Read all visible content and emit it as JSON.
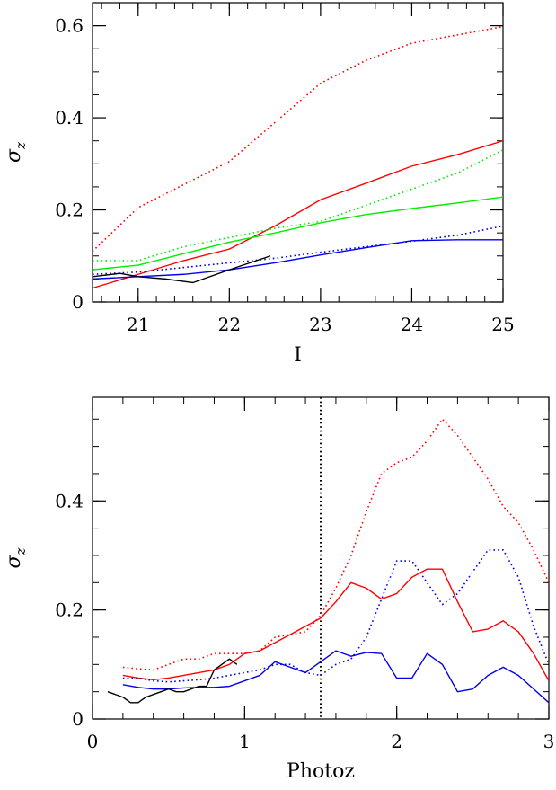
{
  "colors": {
    "red": "#ff0000",
    "green": "#00ee00",
    "blue": "#0000ee",
    "black": "#000000"
  },
  "chart_data": [
    {
      "type": "line",
      "xlabel": "I",
      "ylabel": "σ",
      "ylabel_sub": "z",
      "xlim": [
        20.5,
        25
      ],
      "ylim": [
        0,
        0.65
      ],
      "xticks": [
        21,
        22,
        23,
        24,
        25
      ],
      "xtick_labels": [
        "21",
        "22",
        "23",
        "24",
        "25"
      ],
      "yticks": [
        0,
        0.2,
        0.4,
        0.6
      ],
      "ytick_labels": [
        "0",
        "0.2",
        "0.4",
        "0.6"
      ],
      "x_minor_step": 0.2,
      "y_minor_step": 0.05,
      "vlines": [],
      "series": [
        {
          "color": "red",
          "style": "dotted",
          "x": [
            20.5,
            21.0,
            21.5,
            22.0,
            22.5,
            23.0,
            23.5,
            24.0,
            24.5,
            25.0
          ],
          "y": [
            0.11,
            0.205,
            0.255,
            0.305,
            0.39,
            0.475,
            0.525,
            0.562,
            0.58,
            0.598
          ]
        },
        {
          "color": "red",
          "style": "solid",
          "x": [
            20.5,
            21.0,
            21.5,
            22.0,
            22.5,
            23.0,
            23.5,
            24.0,
            24.5,
            25.0
          ],
          "y": [
            0.03,
            0.06,
            0.09,
            0.115,
            0.165,
            0.222,
            0.258,
            0.295,
            0.32,
            0.35
          ]
        },
        {
          "color": "green",
          "style": "dotted",
          "x": [
            20.5,
            21.0,
            21.5,
            22.0,
            22.5,
            23.0,
            23.5,
            24.0,
            24.5,
            25.0
          ],
          "y": [
            0.09,
            0.09,
            0.12,
            0.14,
            0.16,
            0.175,
            0.21,
            0.245,
            0.28,
            0.33
          ]
        },
        {
          "color": "green",
          "style": "solid",
          "x": [
            20.5,
            21.0,
            21.5,
            22.0,
            22.5,
            23.0,
            23.5,
            24.0,
            24.5,
            25.0
          ],
          "y": [
            0.07,
            0.08,
            0.105,
            0.13,
            0.15,
            0.172,
            0.19,
            0.203,
            0.215,
            0.228
          ]
        },
        {
          "color": "blue",
          "style": "dotted",
          "x": [
            20.5,
            21.0,
            21.5,
            22.0,
            22.5,
            23.0,
            23.5,
            24.0,
            24.5,
            25.0
          ],
          "y": [
            0.06,
            0.065,
            0.075,
            0.085,
            0.095,
            0.108,
            0.12,
            0.132,
            0.145,
            0.165
          ]
        },
        {
          "color": "blue",
          "style": "solid",
          "x": [
            20.5,
            21.0,
            21.5,
            22.0,
            22.5,
            23.0,
            23.5,
            24.0,
            24.5,
            25.0
          ],
          "y": [
            0.05,
            0.055,
            0.06,
            0.07,
            0.085,
            0.102,
            0.118,
            0.133,
            0.135,
            0.135
          ]
        },
        {
          "color": "black",
          "style": "solid",
          "x": [
            20.5,
            20.8,
            21.0,
            21.3,
            21.6,
            22.0,
            22.45
          ],
          "y": [
            0.055,
            0.062,
            0.055,
            0.05,
            0.042,
            0.07,
            0.1
          ]
        }
      ]
    },
    {
      "type": "line",
      "xlabel": "Photoz",
      "ylabel": "σ",
      "ylabel_sub": "z",
      "xlim": [
        0,
        3
      ],
      "ylim": [
        0,
        0.59
      ],
      "xticks": [
        0,
        1,
        2,
        3
      ],
      "xtick_labels": [
        "0",
        "1",
        "2",
        "3"
      ],
      "yticks": [
        0,
        0.2,
        0.4
      ],
      "ytick_labels": [
        "0",
        "0.2",
        "0.4"
      ],
      "x_minor_step": 0.2,
      "y_minor_step": 0.05,
      "vlines": [
        {
          "x": 1.5,
          "color": "black",
          "style": "dotted"
        }
      ],
      "series": [
        {
          "color": "red",
          "style": "dotted",
          "x": [
            0.2,
            0.3,
            0.4,
            0.5,
            0.6,
            0.7,
            0.8,
            0.9,
            1.0,
            1.1,
            1.2,
            1.3,
            1.4,
            1.5,
            1.6,
            1.7,
            1.8,
            1.9,
            2.0,
            2.1,
            2.2,
            2.3,
            2.4,
            2.5,
            2.6,
            2.7,
            2.8,
            2.9,
            3.0
          ],
          "y": [
            0.095,
            0.092,
            0.09,
            0.1,
            0.11,
            0.11,
            0.12,
            0.12,
            0.12,
            0.125,
            0.15,
            0.155,
            0.16,
            0.19,
            0.24,
            0.3,
            0.38,
            0.45,
            0.47,
            0.48,
            0.51,
            0.55,
            0.52,
            0.48,
            0.44,
            0.39,
            0.36,
            0.31,
            0.25
          ]
        },
        {
          "color": "red",
          "style": "solid",
          "x": [
            0.2,
            0.3,
            0.4,
            0.5,
            0.6,
            0.7,
            0.8,
            0.9,
            1.0,
            1.1,
            1.2,
            1.3,
            1.4,
            1.5,
            1.6,
            1.7,
            1.8,
            1.9,
            2.0,
            2.1,
            2.2,
            2.3,
            2.4,
            2.5,
            2.6,
            2.7,
            2.8,
            2.9,
            3.0
          ],
          "y": [
            0.08,
            0.075,
            0.072,
            0.075,
            0.08,
            0.085,
            0.09,
            0.1,
            0.12,
            0.125,
            0.14,
            0.155,
            0.17,
            0.185,
            0.215,
            0.25,
            0.24,
            0.22,
            0.23,
            0.26,
            0.275,
            0.275,
            0.215,
            0.16,
            0.165,
            0.18,
            0.16,
            0.12,
            0.07
          ]
        },
        {
          "color": "blue",
          "style": "dotted",
          "x": [
            0.2,
            0.3,
            0.4,
            0.5,
            0.6,
            0.7,
            0.8,
            0.9,
            1.0,
            1.1,
            1.2,
            1.3,
            1.4,
            1.5,
            1.6,
            1.7,
            1.8,
            1.9,
            2.0,
            2.1,
            2.2,
            2.3,
            2.4,
            2.5,
            2.6,
            2.7,
            2.8,
            2.9,
            3.0
          ],
          "y": [
            0.075,
            0.075,
            0.07,
            0.068,
            0.07,
            0.072,
            0.075,
            0.08,
            0.085,
            0.09,
            0.1,
            0.1,
            0.085,
            0.08,
            0.1,
            0.11,
            0.15,
            0.22,
            0.29,
            0.29,
            0.25,
            0.21,
            0.23,
            0.27,
            0.31,
            0.31,
            0.26,
            0.17,
            0.1
          ]
        },
        {
          "color": "blue",
          "style": "solid",
          "x": [
            0.2,
            0.3,
            0.4,
            0.5,
            0.6,
            0.7,
            0.8,
            0.9,
            1.0,
            1.1,
            1.2,
            1.3,
            1.4,
            1.5,
            1.6,
            1.7,
            1.8,
            1.9,
            2.0,
            2.1,
            2.2,
            2.3,
            2.4,
            2.5,
            2.6,
            2.7,
            2.8,
            2.9,
            3.0
          ],
          "y": [
            0.063,
            0.058,
            0.055,
            0.055,
            0.057,
            0.058,
            0.058,
            0.06,
            0.07,
            0.08,
            0.105,
            0.095,
            0.085,
            0.105,
            0.125,
            0.115,
            0.122,
            0.12,
            0.075,
            0.075,
            0.12,
            0.1,
            0.05,
            0.055,
            0.08,
            0.095,
            0.08,
            0.055,
            0.03
          ]
        },
        {
          "color": "black",
          "style": "solid",
          "x": [
            0.1,
            0.2,
            0.25,
            0.3,
            0.35,
            0.4,
            0.45,
            0.5,
            0.55,
            0.6,
            0.65,
            0.7,
            0.75,
            0.8,
            0.85,
            0.9,
            0.95
          ],
          "y": [
            0.05,
            0.04,
            0.03,
            0.03,
            0.04,
            0.045,
            0.05,
            0.055,
            0.05,
            0.05,
            0.055,
            0.06,
            0.06,
            0.09,
            0.1,
            0.11,
            0.1
          ]
        }
      ]
    }
  ]
}
